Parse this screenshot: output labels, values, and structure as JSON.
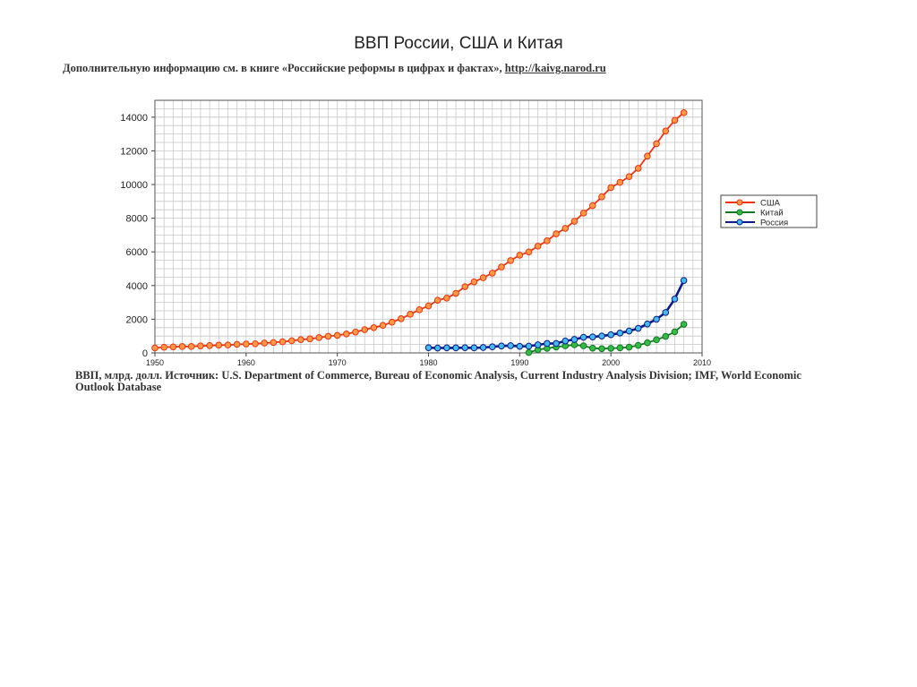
{
  "title": "ВВП России, США и Китая",
  "subtitle": {
    "text": "Дополнительную информацию см. в книге «Российские реформы в цифрах и фактах»,",
    "link": "http://kaivg.narod.ru"
  },
  "source_note": "ВВП, млрд. долл. Источник: U.S. Department of Commerce, Bureau of Economic Analysis, Current Industry Analysis Division; IMF, World Economic Outlook Database",
  "chart_data": {
    "type": "line",
    "xlim": [
      1950,
      2010
    ],
    "ylim": [
      0,
      15000
    ],
    "x_ticks": [
      1950,
      1960,
      1970,
      1980,
      1990,
      2000,
      2010
    ],
    "y_ticks": [
      0,
      2000,
      4000,
      6000,
      8000,
      10000,
      12000,
      14000
    ],
    "x_tick_labels": [
      "1950",
      "1960",
      "1970",
      "1980",
      "1990",
      "2000",
      "2010"
    ],
    "y_tick_labels": [
      "0",
      "2000",
      "4000",
      "6000",
      "8000",
      "10000",
      "12000",
      "14000"
    ],
    "grid": true,
    "legend_position": "right",
    "series": [
      {
        "name": "США",
        "line_color": "#ee3311",
        "marker_color": "#ff9944",
        "x": [
          1950,
          1951,
          1952,
          1953,
          1954,
          1955,
          1956,
          1957,
          1958,
          1959,
          1960,
          1961,
          1962,
          1963,
          1964,
          1965,
          1966,
          1967,
          1968,
          1969,
          1970,
          1971,
          1972,
          1973,
          1974,
          1975,
          1976,
          1977,
          1978,
          1979,
          1980,
          1981,
          1982,
          1983,
          1984,
          1985,
          1986,
          1987,
          1988,
          1989,
          1990,
          1991,
          1992,
          1993,
          1994,
          1995,
          1996,
          1997,
          1998,
          1999,
          2000,
          2001,
          2002,
          2003,
          2004,
          2005,
          2006,
          2007,
          2008
        ],
        "values": [
          294,
          339,
          358,
          380,
          381,
          415,
          438,
          461,
          467,
          507,
          526,
          545,
          586,
          618,
          664,
          719,
          788,
          832,
          910,
          985,
          1040,
          1128,
          1241,
          1382,
          1500,
          1638,
          1825,
          2031,
          2295,
          2563,
          2789,
          3128,
          3255,
          3537,
          3933,
          4220,
          4463,
          4740,
          5104,
          5484,
          5803,
          5996,
          6338,
          6657,
          7072,
          7398,
          7817,
          8304,
          8747,
          9268,
          9817,
          10128,
          10470,
          10961,
          11686,
          12422,
          13178,
          13808,
          14265
        ]
      },
      {
        "name": "Китай",
        "line_color": "#117722",
        "marker_color": "#33bb44",
        "x": [
          1991,
          1992,
          1993,
          1994,
          1995,
          1996,
          1997,
          1998,
          1999,
          2000,
          2001,
          2002,
          2003,
          2004,
          2005,
          2006,
          2007,
          2008
        ],
        "values": [
          20,
          190,
          270,
          350,
          420,
          480,
          420,
          280,
          250,
          270,
          300,
          340,
          450,
          600,
          780,
          980,
          1250,
          1700
        ]
      },
      {
        "name": "Россия",
        "line_color": "#0a1a8a",
        "marker_color": "#44bbee",
        "x": [
          1980,
          1981,
          1982,
          1983,
          1984,
          1985,
          1986,
          1987,
          1988,
          1989,
          1990,
          1991,
          1992,
          1993,
          1994,
          1995,
          1996,
          1997,
          1998,
          1999,
          2000,
          2001,
          2002,
          2003,
          2004,
          2005,
          2006,
          2007,
          2008
        ],
        "values": [
          310,
          290,
          300,
          300,
          310,
          300,
          320,
          360,
          410,
          430,
          390,
          400,
          480,
          560,
          560,
          710,
          800,
          930,
          950,
          1000,
          1080,
          1180,
          1300,
          1460,
          1720,
          2000,
          2400,
          3200,
          4300
        ]
      }
    ]
  }
}
